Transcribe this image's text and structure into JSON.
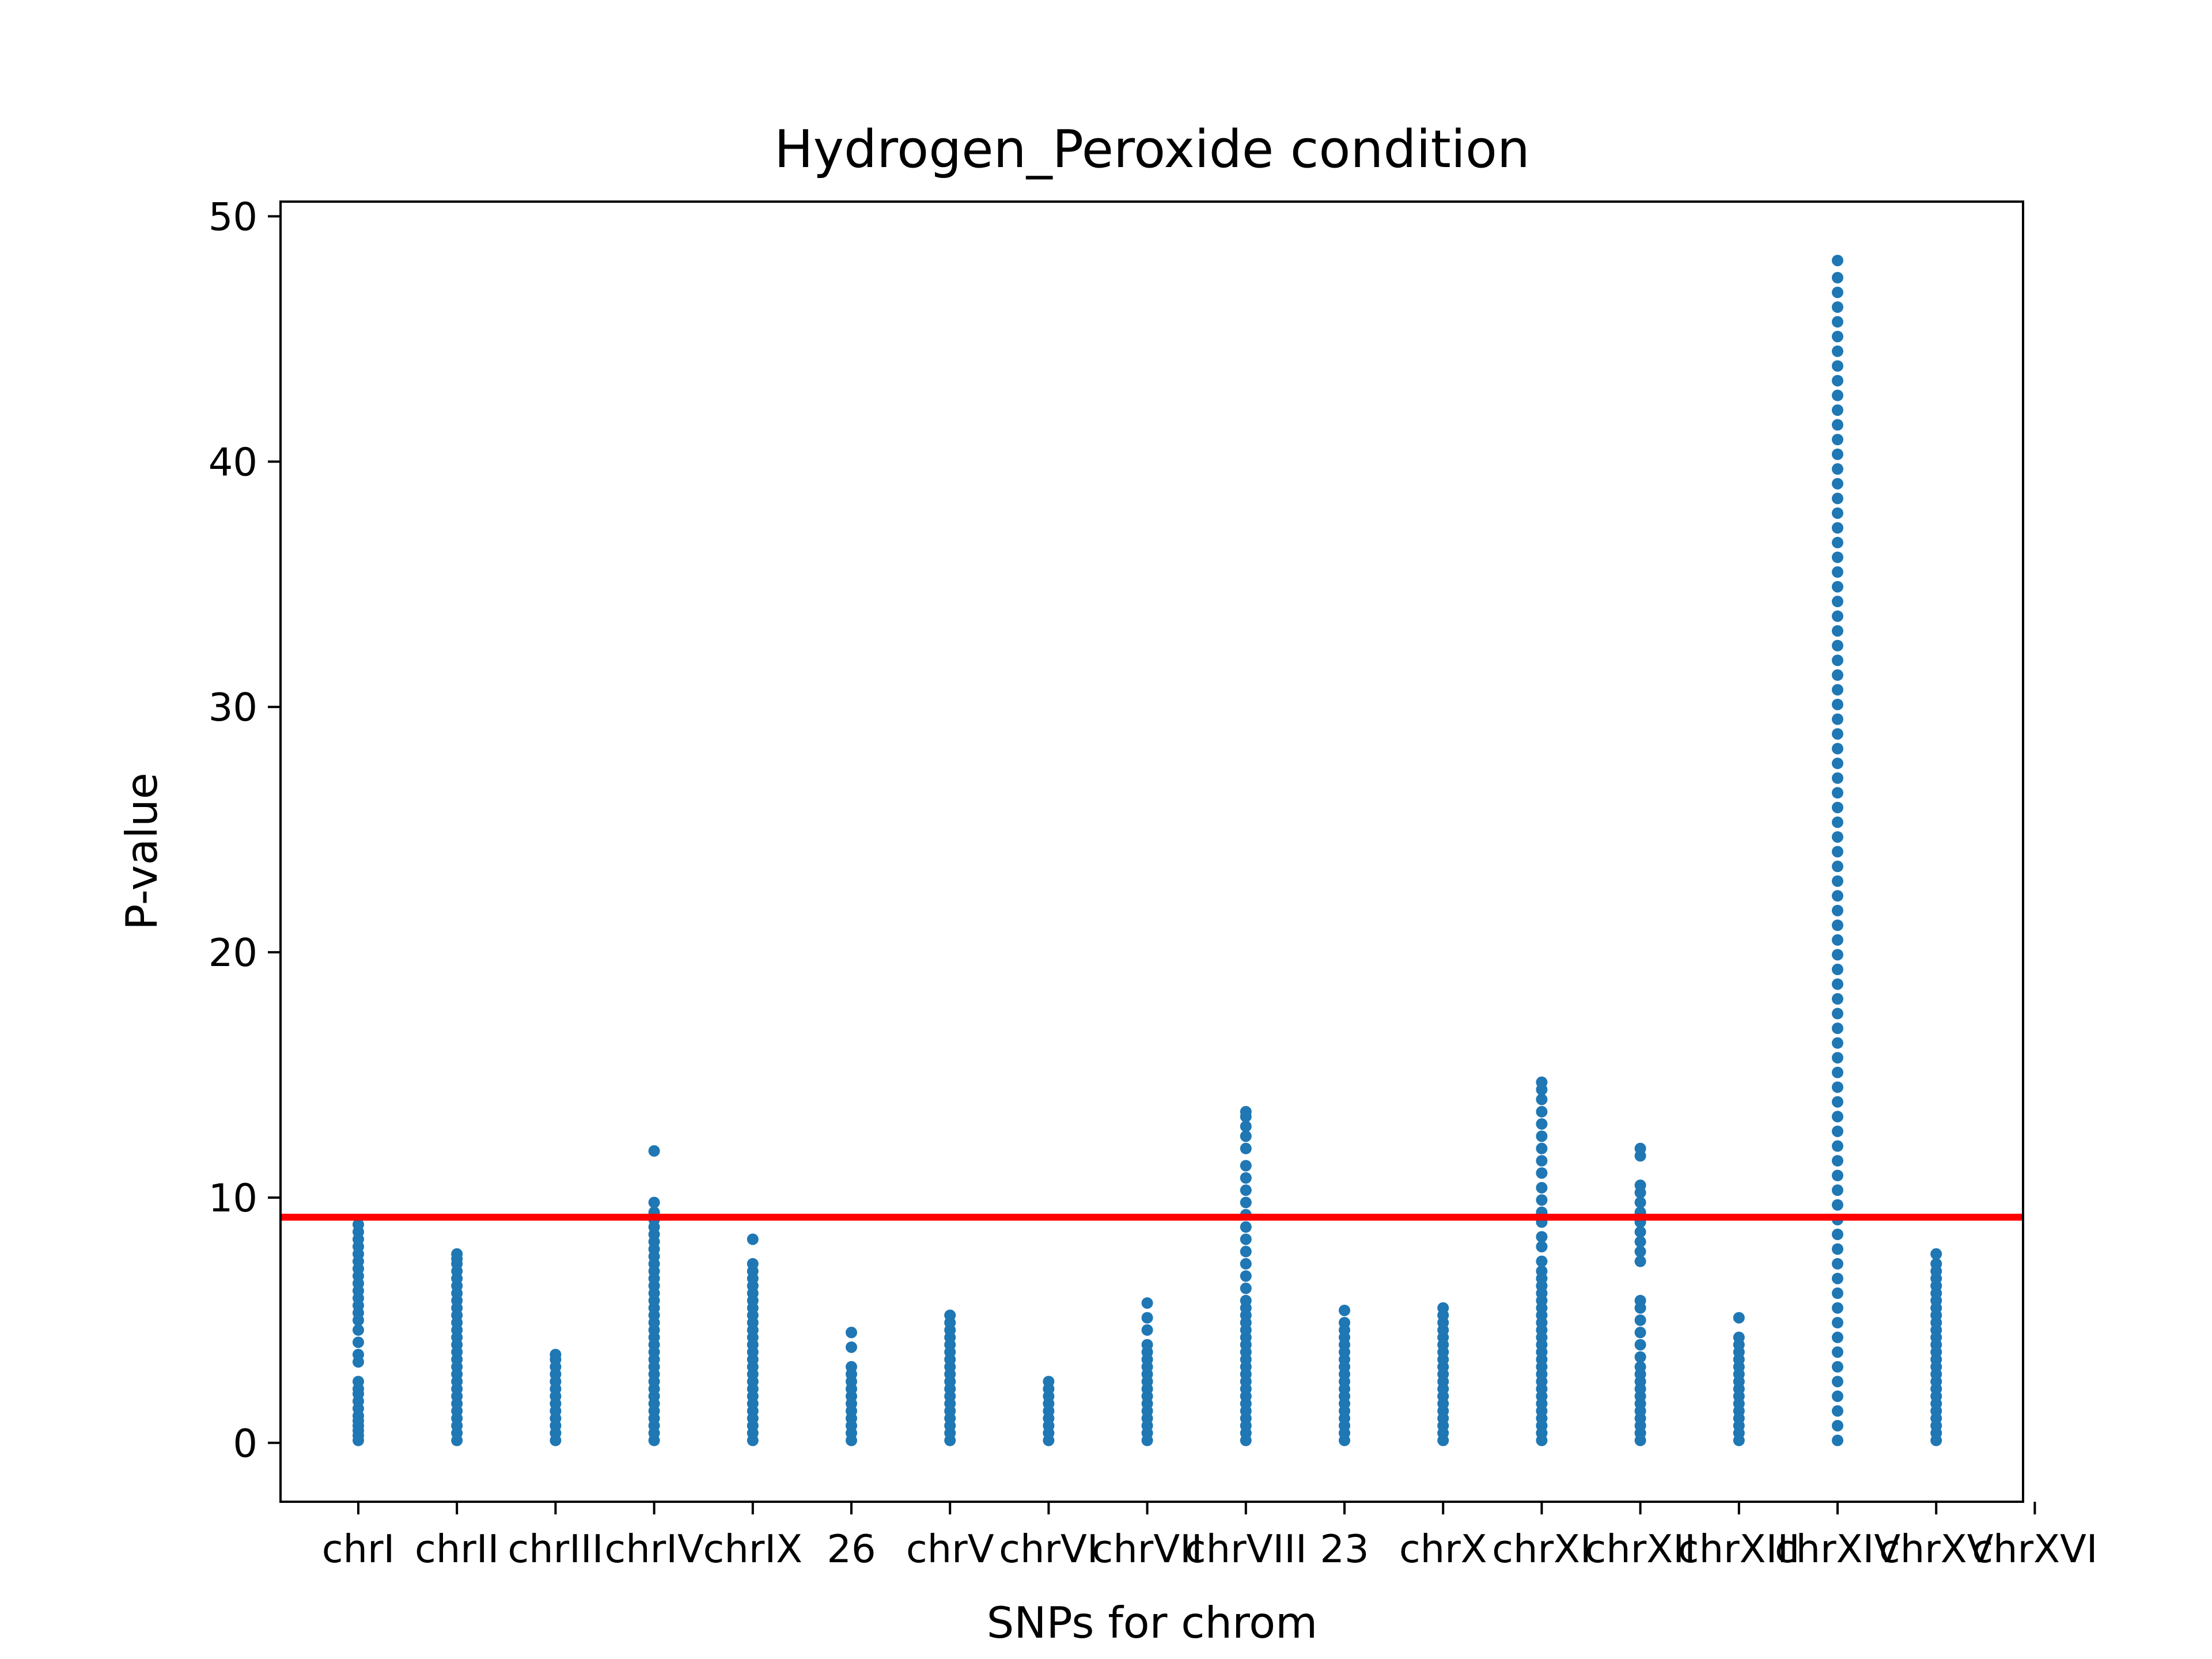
{
  "chart_data": {
    "type": "scatter",
    "title": "Hydrogen_Peroxide condition",
    "xlabel": "SNPs for chrom",
    "ylabel": "P-value",
    "ylim": [
      -2.4,
      50.6
    ],
    "yticks": [
      0,
      10,
      20,
      30,
      40,
      50
    ],
    "categories": [
      "chrI",
      "chrII",
      "chrIII",
      "chrIV",
      "chrIX",
      "26",
      "chrV",
      "chrVI",
      "chrVII",
      "chrVIII",
      "23",
      "chrX",
      "chrXI",
      "chrXII",
      "chrXIII",
      "chrXIV",
      "chrXV",
      "chrXVI"
    ],
    "threshold": 9.2,
    "grid": false,
    "legend": "none",
    "colors": {
      "points": "#1f77b4",
      "threshold": "#ff0000"
    },
    "series": [
      {
        "category": "chrI",
        "points": [
          0.1,
          0.3,
          0.5,
          0.7,
          0.9,
          1.1,
          1.4,
          1.7,
          2.0,
          2.2,
          2.5,
          3.3,
          3.6,
          4.1,
          4.6,
          5.0,
          5.3,
          5.6,
          5.9,
          6.2,
          6.5,
          6.8,
          7.1,
          7.4,
          7.7,
          8.0,
          8.3,
          8.6,
          8.9
        ]
      },
      {
        "category": "chrII",
        "points": [
          0.1,
          0.4,
          0.7,
          1.0,
          1.3,
          1.6,
          1.9,
          2.2,
          2.5,
          2.8,
          3.1,
          3.4,
          3.7,
          4.0,
          4.3,
          4.6,
          4.9,
          5.2,
          5.5,
          5.8,
          6.1,
          6.4,
          6.7,
          7.0,
          7.3,
          7.5,
          7.7
        ]
      },
      {
        "category": "chrIII",
        "points": [
          0.1,
          0.4,
          0.7,
          1.0,
          1.3,
          1.6,
          1.9,
          2.2,
          2.5,
          2.8,
          3.1,
          3.4,
          3.6
        ]
      },
      {
        "category": "chrIV",
        "points": [
          0.1,
          0.4,
          0.7,
          1.0,
          1.3,
          1.6,
          1.9,
          2.2,
          2.5,
          2.8,
          3.1,
          3.4,
          3.7,
          4.0,
          4.3,
          4.6,
          4.9,
          5.2,
          5.5,
          5.8,
          6.1,
          6.4,
          6.7,
          7.0,
          7.3,
          7.6,
          7.9,
          8.2,
          8.5,
          8.8,
          9.1,
          9.4,
          9.8,
          11.9
        ]
      },
      {
        "category": "chrIX",
        "points": [
          0.1,
          0.4,
          0.7,
          1.0,
          1.3,
          1.6,
          1.9,
          2.2,
          2.5,
          2.8,
          3.1,
          3.4,
          3.7,
          4.0,
          4.3,
          4.6,
          4.9,
          5.2,
          5.5,
          5.8,
          6.1,
          6.4,
          6.7,
          7.0,
          7.3,
          8.3
        ]
      },
      {
        "category": "26",
        "points": [
          0.1,
          0.4,
          0.7,
          1.0,
          1.3,
          1.6,
          1.9,
          2.2,
          2.5,
          2.8,
          3.1,
          3.9,
          4.5
        ]
      },
      {
        "category": "chrV",
        "points": [
          0.1,
          0.4,
          0.7,
          1.0,
          1.3,
          1.6,
          1.9,
          2.2,
          2.5,
          2.8,
          3.1,
          3.4,
          3.7,
          4.0,
          4.3,
          4.6,
          4.9,
          5.2
        ]
      },
      {
        "category": "chrVI",
        "points": [
          0.1,
          0.4,
          0.7,
          1.0,
          1.3,
          1.6,
          1.9,
          2.2,
          2.5
        ]
      },
      {
        "category": "chrVII",
        "points": [
          0.1,
          0.4,
          0.7,
          1.0,
          1.3,
          1.6,
          1.9,
          2.2,
          2.5,
          2.8,
          3.1,
          3.4,
          3.7,
          4.0,
          4.6,
          5.1,
          5.7
        ]
      },
      {
        "category": "chrVIII",
        "points": [
          0.1,
          0.4,
          0.7,
          1.0,
          1.3,
          1.6,
          1.9,
          2.2,
          2.5,
          2.8,
          3.1,
          3.4,
          3.7,
          4.0,
          4.3,
          4.6,
          4.9,
          5.2,
          5.5,
          5.8,
          6.3,
          6.8,
          7.3,
          7.8,
          8.3,
          8.8,
          9.3,
          9.8,
          10.3,
          10.8,
          11.3,
          12.0,
          12.5,
          12.9,
          13.3,
          13.5
        ]
      },
      {
        "category": "23",
        "points": [
          0.1,
          0.4,
          0.7,
          1.0,
          1.3,
          1.6,
          1.9,
          2.2,
          2.5,
          2.8,
          3.1,
          3.4,
          3.7,
          4.0,
          4.3,
          4.6,
          4.9,
          5.4
        ]
      },
      {
        "category": "chrX",
        "points": [
          0.1,
          0.4,
          0.7,
          1.0,
          1.3,
          1.6,
          1.9,
          2.2,
          2.5,
          2.8,
          3.1,
          3.4,
          3.7,
          4.0,
          4.3,
          4.6,
          4.9,
          5.2,
          5.5
        ]
      },
      {
        "category": "chrXI",
        "points": [
          0.1,
          0.4,
          0.7,
          1.0,
          1.3,
          1.6,
          1.9,
          2.2,
          2.5,
          2.8,
          3.1,
          3.4,
          3.7,
          4.0,
          4.3,
          4.6,
          4.9,
          5.2,
          5.5,
          5.8,
          6.1,
          6.4,
          6.7,
          7.0,
          7.4,
          8.0,
          8.4,
          9.0,
          9.4,
          9.9,
          10.4,
          11.0,
          11.5,
          12.0,
          12.5,
          13.0,
          13.5,
          14.0,
          14.4,
          14.7
        ]
      },
      {
        "category": "chrXII",
        "points": [
          0.1,
          0.4,
          0.7,
          1.0,
          1.3,
          1.6,
          1.9,
          2.2,
          2.5,
          2.8,
          3.1,
          3.5,
          4.0,
          4.5,
          5.0,
          5.5,
          5.8,
          7.4,
          7.8,
          8.2,
          8.6,
          9.0,
          9.4,
          9.8,
          10.2,
          10.5,
          11.7,
          12.0
        ]
      },
      {
        "category": "chrXIII",
        "points": [
          0.1,
          0.4,
          0.7,
          1.0,
          1.3,
          1.6,
          1.9,
          2.2,
          2.5,
          2.8,
          3.1,
          3.4,
          3.7,
          4.0,
          4.3,
          5.1
        ]
      },
      {
        "category": "chrXIV",
        "points": [
          0.1,
          0.7,
          1.3,
          1.9,
          2.5,
          3.1,
          3.7,
          4.3,
          4.9,
          5.5,
          6.1,
          6.7,
          7.3,
          7.9,
          8.5,
          9.1,
          9.7,
          10.3,
          10.9,
          11.5,
          12.1,
          12.7,
          13.3,
          13.9,
          14.5,
          15.1,
          15.7,
          16.3,
          16.9,
          17.5,
          18.1,
          18.7,
          19.3,
          19.9,
          20.5,
          21.1,
          21.7,
          22.3,
          22.9,
          23.5,
          24.1,
          24.7,
          25.3,
          25.9,
          26.5,
          27.1,
          27.7,
          28.3,
          28.9,
          29.5,
          30.1,
          30.7,
          31.3,
          31.9,
          32.5,
          33.1,
          33.7,
          34.3,
          34.9,
          35.5,
          36.1,
          36.7,
          37.3,
          37.9,
          38.5,
          39.1,
          39.7,
          40.3,
          40.9,
          41.5,
          42.1,
          42.7,
          43.3,
          43.9,
          44.5,
          45.1,
          45.7,
          46.3,
          46.9,
          47.5,
          48.2
        ]
      },
      {
        "category": "chrXV",
        "points": [
          0.1,
          0.4,
          0.7,
          1.0,
          1.3,
          1.6,
          1.9,
          2.2,
          2.5,
          2.8,
          3.1,
          3.4,
          3.7,
          4.0,
          4.3,
          4.6,
          4.9,
          5.2,
          5.5,
          5.8,
          6.1,
          6.4,
          6.7,
          7.0,
          7.3,
          7.7
        ]
      },
      {
        "category": "chrXVI",
        "points": []
      }
    ]
  }
}
